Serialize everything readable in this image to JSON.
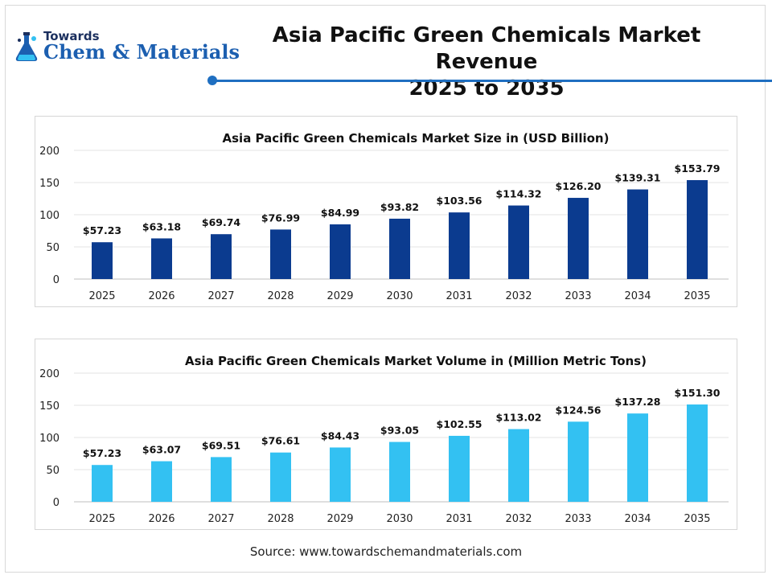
{
  "logo": {
    "line1": "Towards",
    "line2": "Chem & Materials",
    "icon": "flask-logo-icon"
  },
  "header": {
    "title_line1": "Asia Pacific Green Chemicals Market Revenue",
    "title_line2": "2025 to 2035"
  },
  "source": "Source: www.towardschemandmaterials.com",
  "colors": {
    "accent": "#1f6fc1",
    "bar_dark": "#0b3b8f",
    "bar_light": "#33c1f2",
    "grid": "#e3e3e3"
  },
  "chart_data": [
    {
      "type": "bar",
      "title": "Asia Pacific Green Chemicals Market Size in (USD Billion)",
      "xlabel": "",
      "ylabel": "",
      "categories": [
        "2025",
        "2026",
        "2027",
        "2028",
        "2029",
        "2030",
        "2031",
        "2032",
        "2033",
        "2034",
        "2035"
      ],
      "values": [
        57.23,
        63.18,
        69.74,
        76.99,
        84.99,
        93.82,
        103.56,
        114.32,
        126.2,
        139.31,
        153.79
      ],
      "labels": [
        "$57.23",
        "$63.18",
        "$69.74",
        "$76.99",
        "$84.99",
        "$93.82",
        "$103.56",
        "$114.32",
        "$126.20",
        "$139.31",
        "$153.79"
      ],
      "yticks": [
        "0",
        "50",
        "100",
        "150",
        "200"
      ],
      "ylim": [
        0,
        200
      ],
      "grid": true,
      "color": "#0b3b8f"
    },
    {
      "type": "bar",
      "title": "Asia Pacific Green Chemicals Market Volume in (Million Metric Tons)",
      "xlabel": "",
      "ylabel": "",
      "categories": [
        "2025",
        "2026",
        "2027",
        "2028",
        "2029",
        "2030",
        "2031",
        "2032",
        "2033",
        "2034",
        "2035"
      ],
      "values": [
        57.23,
        63.07,
        69.51,
        76.61,
        84.43,
        93.05,
        102.55,
        113.02,
        124.56,
        137.28,
        151.3
      ],
      "labels": [
        "$57.23",
        "$63.07",
        "$69.51",
        "$76.61",
        "$84.43",
        "$93.05",
        "$102.55",
        "$113.02",
        "$124.56",
        "$137.28",
        "$151.30"
      ],
      "yticks": [
        "0",
        "50",
        "100",
        "150",
        "200"
      ],
      "ylim": [
        0,
        200
      ],
      "grid": true,
      "color": "#33c1f2"
    }
  ]
}
